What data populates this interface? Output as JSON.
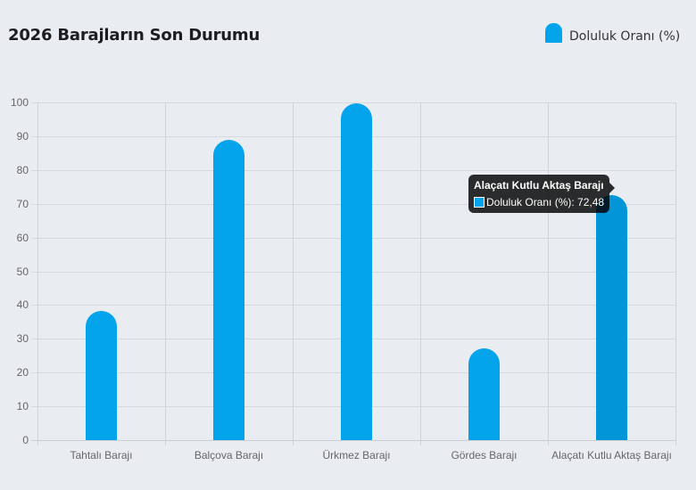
{
  "title": "2026 Barajların Son Durumu",
  "legend": {
    "label": "Doluluk Oranı (%)",
    "color": "#03a4ec"
  },
  "tooltip": {
    "title": "Alaçatı Kutlu Aktaş Barajı",
    "label": "Doluluk Oranı (%): 72,48"
  },
  "chart_data": {
    "type": "bar",
    "title": "2026 Barajların Son Durumu",
    "xlabel": "",
    "ylabel": "",
    "categories": [
      "Tahtalı Barajı",
      "Balçova Barajı",
      "Ürkmez Barajı",
      "Gördes Barajı",
      "Alaçatı Kutlu Aktaş Barajı"
    ],
    "series": [
      {
        "name": "Doluluk Oranı (%)",
        "values": [
          38.2,
          89.0,
          99.7,
          27.2,
          72.48
        ],
        "color": "#03a4ec"
      }
    ],
    "ylim": [
      0,
      100
    ],
    "yticks": [
      0,
      10,
      20,
      30,
      40,
      50,
      60,
      70,
      80,
      90,
      100
    ],
    "grid": true,
    "legend_position": "top-right"
  }
}
